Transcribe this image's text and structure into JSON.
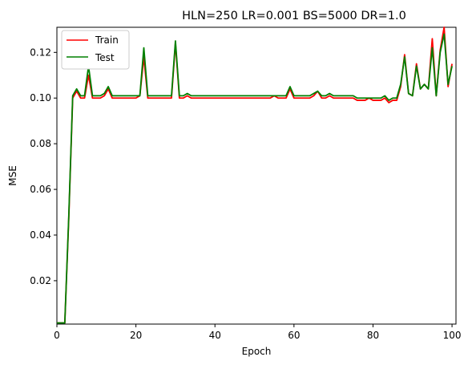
{
  "chart_data": {
    "type": "line",
    "title": "HLN=250 LR=0.001 BS=5000 DR=1.0",
    "xlabel": "Epoch",
    "ylabel": "MSE",
    "xlim": [
      0,
      101
    ],
    "ylim": [
      0.001,
      0.131
    ],
    "xticks": [
      "0",
      "20",
      "40",
      "60",
      "80",
      "100"
    ],
    "yticks": [
      "0.02",
      "0.04",
      "0.06",
      "0.08",
      "0.10",
      "0.12"
    ],
    "legend_position": "top-left",
    "grid": false,
    "series": [
      {
        "name": "Train",
        "color": "#ff0000",
        "x": [
          0,
          1,
          2,
          3,
          4,
          5,
          6,
          7,
          8,
          9,
          10,
          11,
          12,
          13,
          14,
          15,
          16,
          17,
          18,
          19,
          20,
          21,
          22,
          23,
          24,
          25,
          26,
          27,
          28,
          29,
          30,
          31,
          32,
          33,
          34,
          35,
          36,
          37,
          38,
          39,
          40,
          41,
          42,
          43,
          44,
          45,
          46,
          47,
          48,
          49,
          50,
          51,
          52,
          53,
          54,
          55,
          56,
          57,
          58,
          59,
          60,
          61,
          62,
          63,
          64,
          65,
          66,
          67,
          68,
          69,
          70,
          71,
          72,
          73,
          74,
          75,
          76,
          77,
          78,
          79,
          80,
          81,
          82,
          83,
          84,
          85,
          86,
          87,
          88,
          89,
          90,
          91,
          92,
          93,
          94,
          95,
          96,
          97,
          98,
          99,
          100
        ],
        "values": [
          0.0015,
          0.0015,
          0.0015,
          0.047,
          0.1,
          0.103,
          0.1,
          0.1,
          0.11,
          0.1,
          0.1,
          0.1,
          0.101,
          0.104,
          0.1,
          0.1,
          0.1,
          0.1,
          0.1,
          0.1,
          0.1,
          0.101,
          0.118,
          0.1,
          0.1,
          0.1,
          0.1,
          0.1,
          0.1,
          0.1,
          0.124,
          0.1,
          0.1,
          0.101,
          0.1,
          0.1,
          0.1,
          0.1,
          0.1,
          0.1,
          0.1,
          0.1,
          0.1,
          0.1,
          0.1,
          0.1,
          0.1,
          0.1,
          0.1,
          0.1,
          0.1,
          0.1,
          0.1,
          0.1,
          0.1,
          0.101,
          0.1,
          0.1,
          0.1,
          0.104,
          0.1,
          0.1,
          0.1,
          0.1,
          0.1,
          0.101,
          0.103,
          0.1,
          0.1,
          0.101,
          0.1,
          0.1,
          0.1,
          0.1,
          0.1,
          0.1,
          0.099,
          0.099,
          0.099,
          0.1,
          0.099,
          0.099,
          0.099,
          0.1,
          0.098,
          0.099,
          0.099,
          0.105,
          0.119,
          0.102,
          0.101,
          0.115,
          0.104,
          0.106,
          0.104,
          0.126,
          0.101,
          0.121,
          0.131,
          0.105,
          0.115
        ]
      },
      {
        "name": "Test",
        "color": "#008000",
        "x": [
          0,
          1,
          2,
          3,
          4,
          5,
          6,
          7,
          8,
          9,
          10,
          11,
          12,
          13,
          14,
          15,
          16,
          17,
          18,
          19,
          20,
          21,
          22,
          23,
          24,
          25,
          26,
          27,
          28,
          29,
          30,
          31,
          32,
          33,
          34,
          35,
          36,
          37,
          38,
          39,
          40,
          41,
          42,
          43,
          44,
          45,
          46,
          47,
          48,
          49,
          50,
          51,
          52,
          53,
          54,
          55,
          56,
          57,
          58,
          59,
          60,
          61,
          62,
          63,
          64,
          65,
          66,
          67,
          68,
          69,
          70,
          71,
          72,
          73,
          74,
          75,
          76,
          77,
          78,
          79,
          80,
          81,
          82,
          83,
          84,
          85,
          86,
          87,
          88,
          89,
          90,
          91,
          92,
          93,
          94,
          95,
          96,
          97,
          98,
          99,
          100
        ],
        "values": [
          0.0015,
          0.0015,
          0.0015,
          0.048,
          0.101,
          0.104,
          0.101,
          0.101,
          0.114,
          0.101,
          0.101,
          0.101,
          0.102,
          0.105,
          0.101,
          0.101,
          0.101,
          0.101,
          0.101,
          0.101,
          0.101,
          0.101,
          0.122,
          0.101,
          0.101,
          0.101,
          0.101,
          0.101,
          0.101,
          0.101,
          0.125,
          0.101,
          0.101,
          0.102,
          0.101,
          0.101,
          0.101,
          0.101,
          0.101,
          0.101,
          0.101,
          0.101,
          0.101,
          0.101,
          0.101,
          0.101,
          0.101,
          0.101,
          0.101,
          0.101,
          0.101,
          0.101,
          0.101,
          0.101,
          0.101,
          0.101,
          0.101,
          0.101,
          0.101,
          0.105,
          0.101,
          0.101,
          0.101,
          0.101,
          0.101,
          0.102,
          0.103,
          0.101,
          0.101,
          0.102,
          0.101,
          0.101,
          0.101,
          0.101,
          0.101,
          0.101,
          0.1,
          0.1,
          0.1,
          0.1,
          0.1,
          0.1,
          0.1,
          0.101,
          0.099,
          0.1,
          0.1,
          0.106,
          0.118,
          0.102,
          0.101,
          0.114,
          0.104,
          0.106,
          0.104,
          0.122,
          0.101,
          0.12,
          0.128,
          0.106,
          0.114
        ]
      }
    ]
  }
}
